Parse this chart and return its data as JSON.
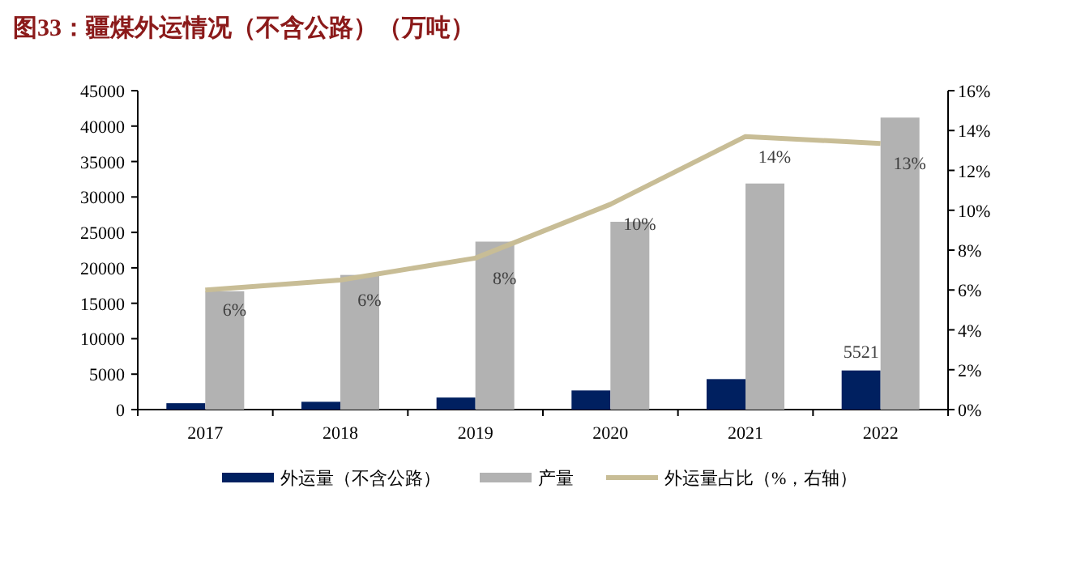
{
  "chart_data": {
    "type": "bar",
    "title": "图33：疆煤外运情况（不含公路）（万吨）",
    "categories": [
      "2017",
      "2018",
      "2019",
      "2020",
      "2021",
      "2022"
    ],
    "series": [
      {
        "name": "外运量（不含公路）",
        "color": "#002060",
        "values": [
          900,
          1100,
          1700,
          2700,
          4300,
          5521
        ],
        "value_labels": [
          null,
          null,
          null,
          null,
          null,
          "5521"
        ]
      },
      {
        "name": "产量",
        "color": "#b2b2b2",
        "values": [
          16700,
          19000,
          23700,
          26500,
          31900,
          41200
        ]
      },
      {
        "name": "外运量占比（%，右轴）",
        "type": "line",
        "axis": "y2",
        "color": "#c8bd96",
        "values": [
          6.0,
          6.5,
          7.6,
          10.3,
          13.7,
          13.35
        ],
        "value_labels": [
          "6%",
          "6%",
          "8%",
          "10%",
          "14%",
          "13%"
        ]
      }
    ],
    "ylim": [
      0,
      45000
    ],
    "yticks": [
      0,
      5000,
      10000,
      15000,
      20000,
      25000,
      30000,
      35000,
      40000,
      45000
    ],
    "y2lim": [
      0,
      16
    ],
    "y2ticks": [
      {
        "value": 0,
        "label": "0%"
      },
      {
        "value": 2,
        "label": "2%"
      },
      {
        "value": 4,
        "label": "4%"
      },
      {
        "value": 6,
        "label": "6%"
      },
      {
        "value": 8,
        "label": "8%"
      },
      {
        "value": 10,
        "label": "10%"
      },
      {
        "value": 12,
        "label": "12%"
      },
      {
        "value": 14,
        "label": "14%"
      },
      {
        "value": 16,
        "label": "16%"
      }
    ],
    "grid": false,
    "legend": "bottom"
  }
}
